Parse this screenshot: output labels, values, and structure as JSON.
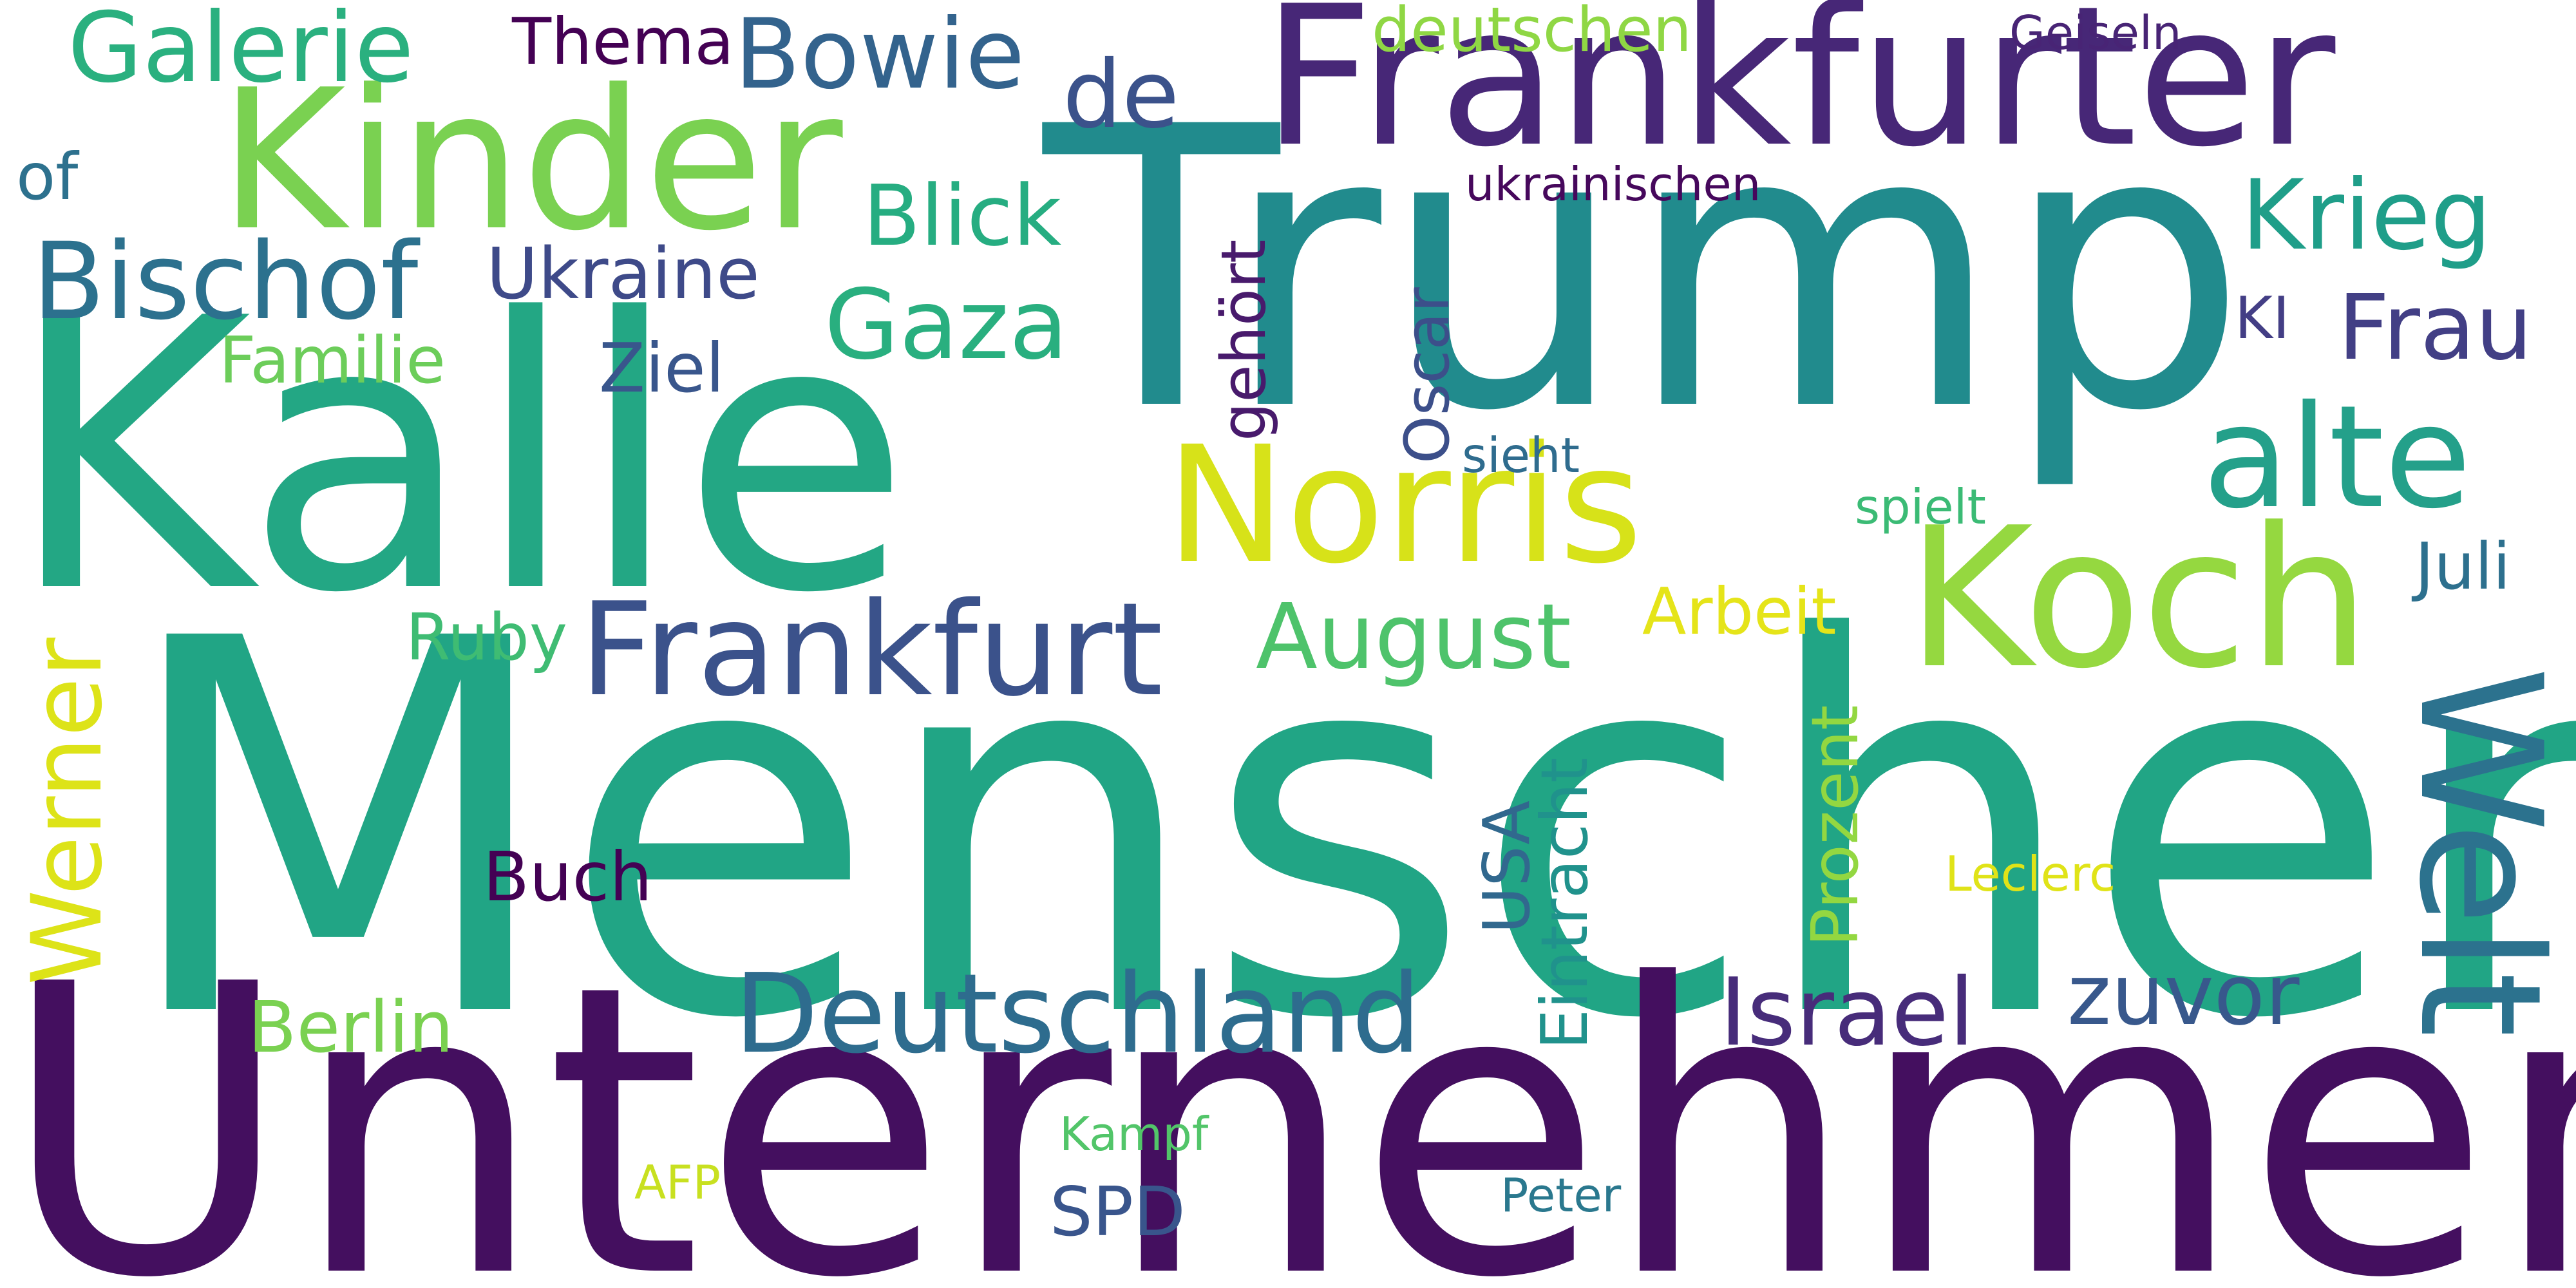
{
  "words": {
    "menschen": {
      "text": "Menschen",
      "color": "#21a585"
    },
    "unternehmen": {
      "text": "Unternehmen",
      "color": "#440f5f"
    },
    "kalle": {
      "text": "Kalle",
      "color": "#23a784"
    },
    "trump": {
      "text": "Trump",
      "color": "#218b8d"
    },
    "frankfurter": {
      "text": "Frankfurter",
      "color": "#472777"
    },
    "kinder": {
      "text": "Kinder",
      "color": "#7ad151"
    },
    "norris": {
      "text": "Norris",
      "color": "#d7e219"
    },
    "koch": {
      "text": "Koch",
      "color": "#95d840"
    },
    "welt": {
      "text": "Welt",
      "color": "#2c728e"
    },
    "alte": {
      "text": "alte",
      "color": "#24a08a"
    },
    "frankfurt": {
      "text": "Frankfurt",
      "color": "#3b528b"
    },
    "deutschland": {
      "text": "Deutschland",
      "color": "#2e6c8e"
    },
    "bischof": {
      "text": "Bischof",
      "color": "#2c718e"
    },
    "ukraine": {
      "text": "Ukraine",
      "color": "#3e4a89"
    },
    "galerie": {
      "text": "Galerie",
      "color": "#2ab07f"
    },
    "bowie": {
      "text": "Bowie",
      "color": "#33638d"
    },
    "gaza": {
      "text": "Gaza",
      "color": "#29af7f"
    },
    "blick": {
      "text": "Blick",
      "color": "#26ad81"
    },
    "krieg": {
      "text": "Krieg",
      "color": "#1f9e89"
    },
    "frau": {
      "text": "Frau",
      "color": "#423f85"
    },
    "august": {
      "text": "August",
      "color": "#4ec36b"
    },
    "israel": {
      "text": "Israel",
      "color": "#472c7a"
    },
    "zuvor": {
      "text": "zuvor",
      "color": "#38588c"
    },
    "werner": {
      "text": "Werner",
      "color": "#dde318"
    },
    "de": {
      "text": "de",
      "color": "#3b528b"
    },
    "thema": {
      "text": "Thema",
      "color": "#440154"
    },
    "deutschen": {
      "text": "deutschen",
      "color": "#8fd744"
    },
    "geiseln": {
      "text": "Geiseln",
      "color": "#482475"
    },
    "ukrainischen": {
      "text": "ukrainischen",
      "color": "#46085c"
    },
    "of": {
      "text": "of",
      "color": "#2d718e"
    },
    "familie": {
      "text": "Familie",
      "color": "#6ccd5a"
    },
    "ziel": {
      "text": "Ziel",
      "color": "#39568c"
    },
    "gehoert": {
      "text": "gehört",
      "color": "#481a6c"
    },
    "oscar": {
      "text": "Oscar",
      "color": "#3c4f8a"
    },
    "ki": {
      "text": "KI",
      "color": "#433e85"
    },
    "sieht": {
      "text": "sieht",
      "color": "#2f6c8e"
    },
    "spielt": {
      "text": "spielt",
      "color": "#3bbb75"
    },
    "juli": {
      "text": "Juli",
      "color": "#2d708e"
    },
    "arbeit": {
      "text": "Arbeit",
      "color": "#e5e419"
    },
    "ruby": {
      "text": "Ruby",
      "color": "#3fbc73"
    },
    "prozent": {
      "text": "Prozent",
      "color": "#93d741"
    },
    "eintracht": {
      "text": "Eintracht",
      "color": "#20928c"
    },
    "usa": {
      "text": "USA",
      "color": "#31688e"
    },
    "buch": {
      "text": "Buch",
      "color": "#440154"
    },
    "leclerc": {
      "text": "Leclerc",
      "color": "#e0e318"
    },
    "berlin": {
      "text": "Berlin",
      "color": "#7ad151"
    },
    "spd": {
      "text": "SPD",
      "color": "#39558c"
    },
    "kampf": {
      "text": "Kampf",
      "color": "#52c569"
    },
    "afp": {
      "text": "AFP",
      "color": "#c8e020"
    },
    "peter": {
      "text": "Peter",
      "color": "#2a788e"
    }
  }
}
